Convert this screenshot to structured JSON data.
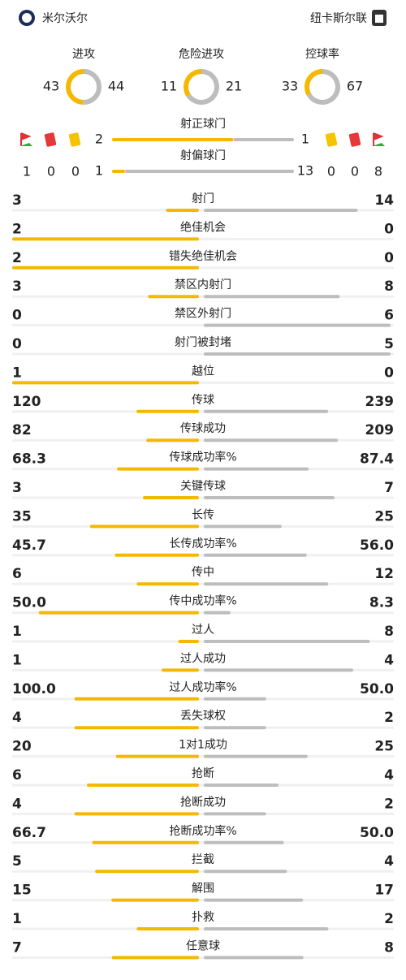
{
  "header": {
    "home": "米尔沃尔",
    "away": "纽卡斯尔联"
  },
  "donuts": [
    {
      "label": "进攻",
      "home": 43,
      "away": 44
    },
    {
      "label": "危险进攻",
      "home": 11,
      "away": 21
    },
    {
      "label": "控球率",
      "home": 33,
      "away": 67
    }
  ],
  "shots": [
    {
      "label": "射正球门",
      "home": 2,
      "away": 1
    },
    {
      "label": "射偏球门",
      "home": 1,
      "away": 13
    }
  ],
  "cards": {
    "home": {
      "corners": 1,
      "red": 0,
      "yellow": 0
    },
    "away": {
      "yellow": 0,
      "red": 0,
      "corners": 8
    }
  },
  "stats": [
    {
      "label": "射门",
      "home": 3,
      "away": 14
    },
    {
      "label": "绝佳机会",
      "home": 2,
      "away": 0
    },
    {
      "label": "错失绝佳机会",
      "home": 2,
      "away": 0
    },
    {
      "label": "禁区内射门",
      "home": 3,
      "away": 8
    },
    {
      "label": "禁区外射门",
      "home": 0,
      "away": 6
    },
    {
      "label": "射门被封堵",
      "home": 0,
      "away": 5
    },
    {
      "label": "越位",
      "home": 1,
      "away": 0
    },
    {
      "label": "传球",
      "home": 120,
      "away": 239
    },
    {
      "label": "传球成功",
      "home": 82,
      "away": 209
    },
    {
      "label": "传球成功率%",
      "home": 68.3,
      "away": 87.4
    },
    {
      "label": "关键传球",
      "home": 3,
      "away": 7
    },
    {
      "label": "长传",
      "home": 35,
      "away": 25
    },
    {
      "label": "长传成功率%",
      "home": 45.7,
      "away": 56,
      "away_label": "56.0"
    },
    {
      "label": "传中",
      "home": 6,
      "away": 12
    },
    {
      "label": "传中成功率%",
      "home": 50,
      "home_label": "50.0",
      "away": 8.3
    },
    {
      "label": "过人",
      "home": 1,
      "away": 8
    },
    {
      "label": "过人成功",
      "home": 1,
      "away": 4
    },
    {
      "label": "过人成功率%",
      "home": 100,
      "home_label": "100.0",
      "away": 50,
      "away_label": "50.0"
    },
    {
      "label": "丢失球权",
      "home": 4,
      "away": 2
    },
    {
      "label": "1对1成功",
      "home": 20,
      "away": 25
    },
    {
      "label": "抢断",
      "home": 6,
      "away": 4
    },
    {
      "label": "抢断成功",
      "home": 4,
      "away": 2
    },
    {
      "label": "抢断成功率%",
      "home": 66.7,
      "away": 50,
      "away_label": "50.0"
    },
    {
      "label": "拦截",
      "home": 5,
      "away": 4
    },
    {
      "label": "解围",
      "home": 15,
      "away": 17
    },
    {
      "label": "扑救",
      "home": 1,
      "away": 2
    },
    {
      "label": "任意球",
      "home": 7,
      "away": 8
    }
  ]
}
